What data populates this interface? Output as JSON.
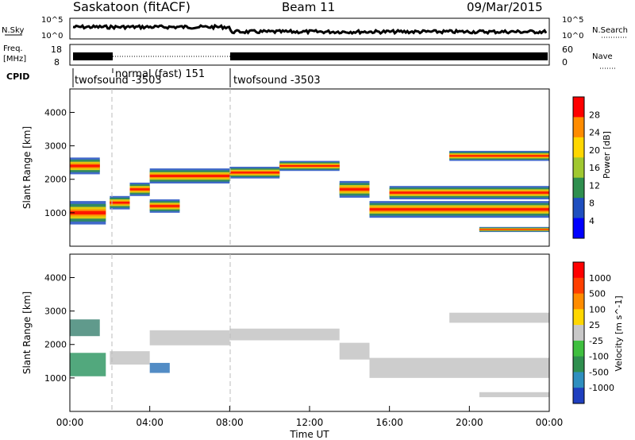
{
  "header": {
    "station": "Saskatoon (fitACF)",
    "beam": "Beam 11",
    "date": "09/Mar/2015"
  },
  "top_panels": {
    "nsky_label": "N.Sky",
    "nsky_ticks": [
      "10^5",
      "10^0"
    ],
    "nsearch_label": "N.Search",
    "nsearch_ticks": [
      "10^5",
      "10^0"
    ],
    "freq_label": "Freq.",
    "freq_unit": "[MHz]",
    "freq_ticks": [
      "18",
      "8"
    ],
    "nave_label": "Nave",
    "nave_ticks": [
      "60",
      "0"
    ],
    "cpid_label": "CPID",
    "cpid_segments": [
      {
        "label": "twofsound -3503",
        "start_h": 0,
        "end_h": 2
      },
      {
        "label": "normal (fast) 151",
        "start_h": 2,
        "end_h": 8
      },
      {
        "label": "twofsound -3503",
        "start_h": 8,
        "end_h": 24
      }
    ]
  },
  "chart_data": [
    {
      "type": "heatmap",
      "name": "power",
      "ylabel": "Slant Range [km]",
      "yticks": [
        "1000",
        "2000",
        "3000",
        "4000"
      ],
      "ylim": [
        0,
        4700
      ],
      "xlim": [
        0,
        24
      ],
      "colorbar_label": "Power [dB]",
      "colorbar_ticks": [
        "4",
        "8",
        "12",
        "16",
        "20",
        "24",
        "28"
      ],
      "colorbar_colors": [
        "#0000ff",
        "#1f4fbf",
        "#2f8f4f",
        "#a0c830",
        "#ffd700",
        "#ff8c00",
        "#ff0000"
      ],
      "echo_bands": [
        {
          "t0": 0.0,
          "t1": 1.8,
          "r": 1000,
          "w": 700
        },
        {
          "t0": 0.0,
          "t1": 1.5,
          "r": 2400,
          "w": 500
        },
        {
          "t0": 2.0,
          "t1": 3.0,
          "r": 1300,
          "w": 400
        },
        {
          "t0": 3.0,
          "t1": 4.0,
          "r": 1700,
          "w": 400
        },
        {
          "t0": 4.0,
          "t1": 5.5,
          "r": 1200,
          "w": 400
        },
        {
          "t0": 4.0,
          "t1": 8.0,
          "r": 2100,
          "w": 450
        },
        {
          "t0": 8.0,
          "t1": 10.5,
          "r": 2200,
          "w": 350
        },
        {
          "t0": 10.5,
          "t1": 13.5,
          "r": 2400,
          "w": 300
        },
        {
          "t0": 13.5,
          "t1": 15.0,
          "r": 1700,
          "w": 500
        },
        {
          "t0": 15.0,
          "t1": 24.0,
          "r": 1100,
          "w": 500
        },
        {
          "t0": 16.0,
          "t1": 24.0,
          "r": 1600,
          "w": 400
        },
        {
          "t0": 19.0,
          "t1": 24.0,
          "r": 2700,
          "w": 300
        },
        {
          "t0": 20.5,
          "t1": 24.0,
          "r": 500,
          "w": 150
        }
      ]
    },
    {
      "type": "heatmap",
      "name": "velocity",
      "ylabel": "Slant Range [km]",
      "yticks": [
        "1000",
        "2000",
        "3000",
        "4000"
      ],
      "ylim": [
        0,
        4700
      ],
      "xlim": [
        0,
        24
      ],
      "xlabel": "Time UT",
      "xticks": [
        "00:00",
        "04:00",
        "08:00",
        "12:00",
        "16:00",
        "20:00",
        "00:00"
      ],
      "colorbar_label": "Velocity [m s^-1]",
      "colorbar_ticks": [
        "1000",
        "500",
        "100",
        "25",
        "-25",
        "-100",
        "-500",
        "-1000"
      ],
      "colorbar_colors": [
        "#1f3fbf",
        "#2f8fbf",
        "#2f8f4f",
        "#3fbf3f",
        "#c8c8c8",
        "#ffd700",
        "#ff8c00",
        "#ff3f00",
        "#ff0000"
      ],
      "echo_bands": [
        {
          "t0": 0.0,
          "t1": 1.8,
          "r": 1400,
          "w": 700,
          "c": "#3f9f6f"
        },
        {
          "t0": 0.0,
          "t1": 1.5,
          "r": 2500,
          "w": 500,
          "c": "#4f8f7f"
        },
        {
          "t0": 2.0,
          "t1": 4.0,
          "r": 1600,
          "w": 400,
          "c": "#c8c8c8"
        },
        {
          "t0": 4.0,
          "t1": 8.0,
          "r": 2200,
          "w": 450,
          "c": "#c8c8c8"
        },
        {
          "t0": 4.0,
          "t1": 5.0,
          "r": 1300,
          "w": 300,
          "c": "#3f7fbf"
        },
        {
          "t0": 8.0,
          "t1": 13.5,
          "r": 2300,
          "w": 350,
          "c": "#c8c8c8"
        },
        {
          "t0": 13.5,
          "t1": 15.0,
          "r": 1800,
          "w": 500,
          "c": "#c8c8c8"
        },
        {
          "t0": 15.0,
          "t1": 24.0,
          "r": 1300,
          "w": 600,
          "c": "#c8c8c8"
        },
        {
          "t0": 19.0,
          "t1": 24.0,
          "r": 2800,
          "w": 300,
          "c": "#c8c8c8"
        },
        {
          "t0": 20.5,
          "t1": 24.0,
          "r": 500,
          "w": 150,
          "c": "#c8c8c8"
        }
      ]
    }
  ]
}
